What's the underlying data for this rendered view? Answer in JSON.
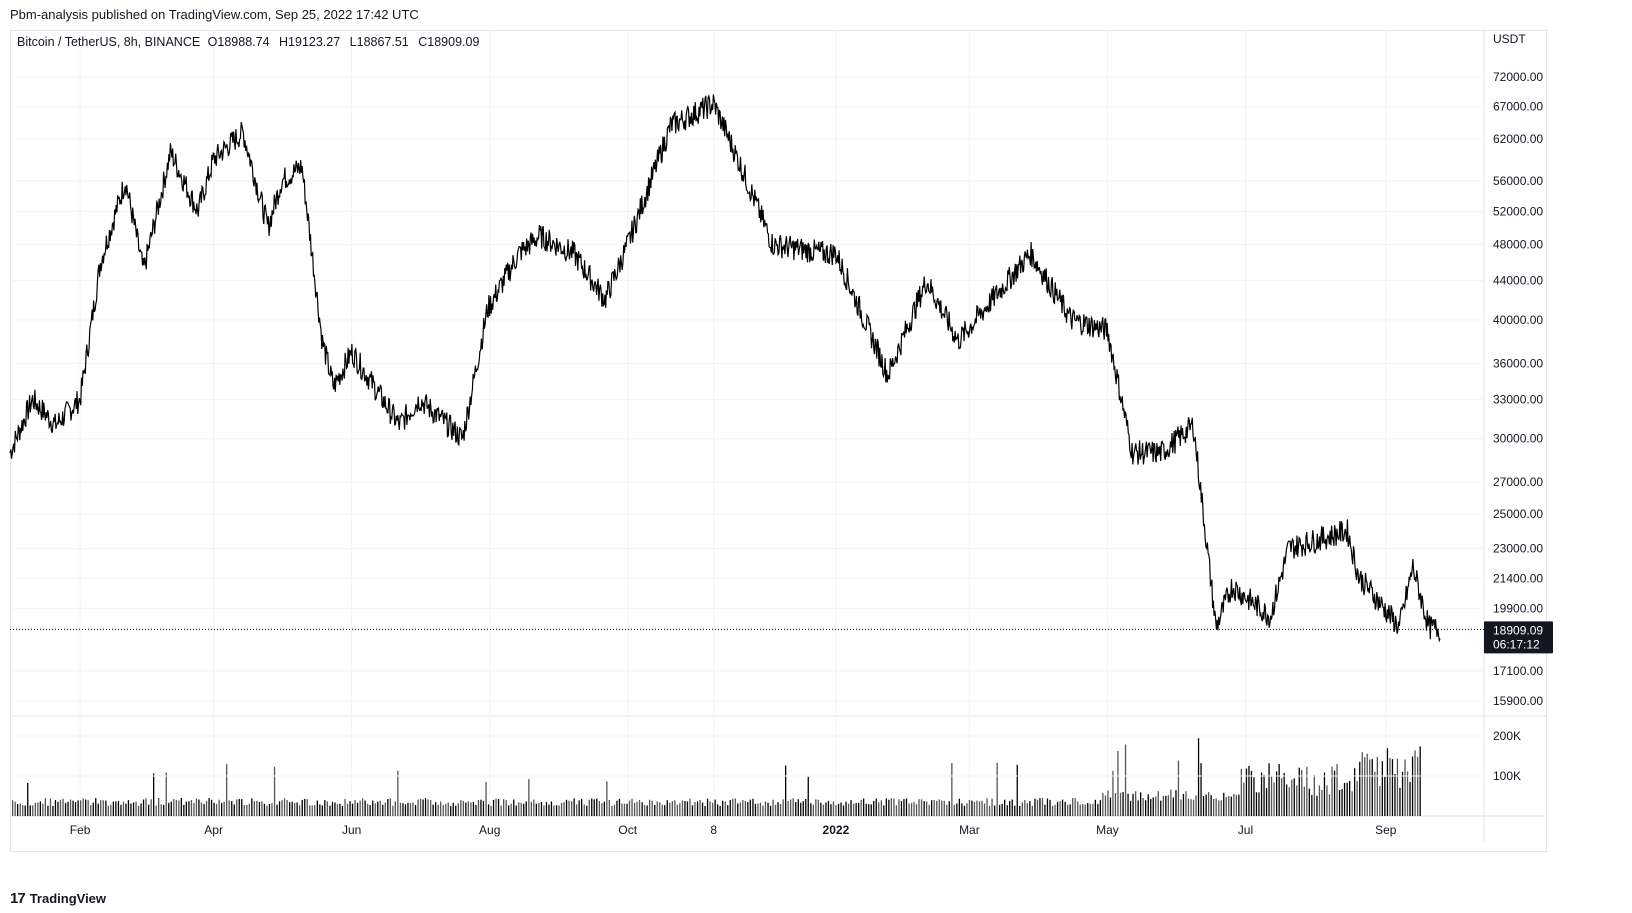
{
  "header": {
    "published": "Pbm-analysis published on TradingView.com, Sep 25, 2022 17:42 UTC"
  },
  "legend": {
    "symbol": "Bitcoin / TetherUS, 8h, BINANCE",
    "open": "O18988.74",
    "high": "H19123.27",
    "low": "L18867.51",
    "close": "C18909.09"
  },
  "price_axis": {
    "currency": "USDT",
    "last_price": "18909.09",
    "countdown": "06:17:12"
  },
  "footer": {
    "brand": "TradingView"
  },
  "colors": {
    "candle": "#000000",
    "grid": "#f0f3fa",
    "border": "#e0e3eb",
    "text": "#131722",
    "label_bg": "#131722"
  },
  "chart_data": {
    "type": "line",
    "series_kind": "candlestick-close-approx",
    "log_scale": true,
    "grid": true,
    "price_ticks": [
      72000,
      67000,
      62000,
      56000,
      52000,
      48000,
      44000,
      40000,
      36000,
      33000,
      30000,
      27000,
      25000,
      23000,
      21400,
      19900,
      17100,
      15900
    ],
    "price_tick_labels": [
      "72000.00",
      "67000.00",
      "62000.00",
      "56000.00",
      "52000.00",
      "48000.00",
      "44000.00",
      "40000.00",
      "36000.00",
      "33000.00",
      "30000.00",
      "27000.00",
      "25000.00",
      "23000.00",
      "21400.00",
      "19900.00",
      "17100.00",
      "15900.00"
    ],
    "time_labels": [
      "Feb",
      "Apr",
      "Jun",
      "Aug",
      "Oct",
      "8",
      "2022",
      "Mar",
      "May",
      "Jul",
      "Sep"
    ],
    "time_label_dates": [
      "2021-02-01",
      "2021-04-01",
      "2021-06-01",
      "2021-08-01",
      "2021-10-01",
      "2021-11-08",
      "2022-01-01",
      "2022-03-01",
      "2022-05-01",
      "2022-07-01",
      "2022-09-01"
    ],
    "x": [
      "2021-01-01",
      "2021-01-11",
      "2021-01-21",
      "2021-02-01",
      "2021-02-10",
      "2021-02-21",
      "2021-03-01",
      "2021-03-13",
      "2021-03-25",
      "2021-04-01",
      "2021-04-14",
      "2021-04-25",
      "2021-05-01",
      "2021-05-10",
      "2021-05-19",
      "2021-05-24",
      "2021-06-01",
      "2021-06-22",
      "2021-07-01",
      "2021-07-20",
      "2021-07-31",
      "2021-08-14",
      "2021-08-23",
      "2021-09-07",
      "2021-09-21",
      "2021-10-01",
      "2021-10-20",
      "2021-11-08",
      "2021-11-20",
      "2021-12-04",
      "2021-12-27",
      "2022-01-01",
      "2022-01-24",
      "2022-02-10",
      "2022-02-24",
      "2022-03-28",
      "2022-04-15",
      "2022-05-01",
      "2022-05-12",
      "2022-05-25",
      "2022-06-08",
      "2022-06-18",
      "2022-06-25",
      "2022-07-12",
      "2022-07-20",
      "2022-08-15",
      "2022-08-20",
      "2022-09-07",
      "2022-09-13",
      "2022-09-20",
      "2022-09-25"
    ],
    "y": [
      29000,
      33000,
      31000,
      33000,
      46000,
      56000,
      45000,
      60000,
      52000,
      59000,
      63000,
      50000,
      56000,
      58000,
      38000,
      34000,
      37000,
      31000,
      33000,
      30000,
      41000,
      47000,
      49000,
      47000,
      42000,
      48000,
      64000,
      67500,
      58000,
      48000,
      47000,
      47000,
      35000,
      44000,
      38000,
      47000,
      40000,
      39000,
      29000,
      29000,
      31000,
      19000,
      21000,
      19500,
      23000,
      24000,
      21500,
      19000,
      22000,
      19000,
      18909
    ],
    "volume_ticks": [
      100000,
      200000
    ],
    "volume_tick_labels": [
      "100K",
      "200K"
    ]
  }
}
